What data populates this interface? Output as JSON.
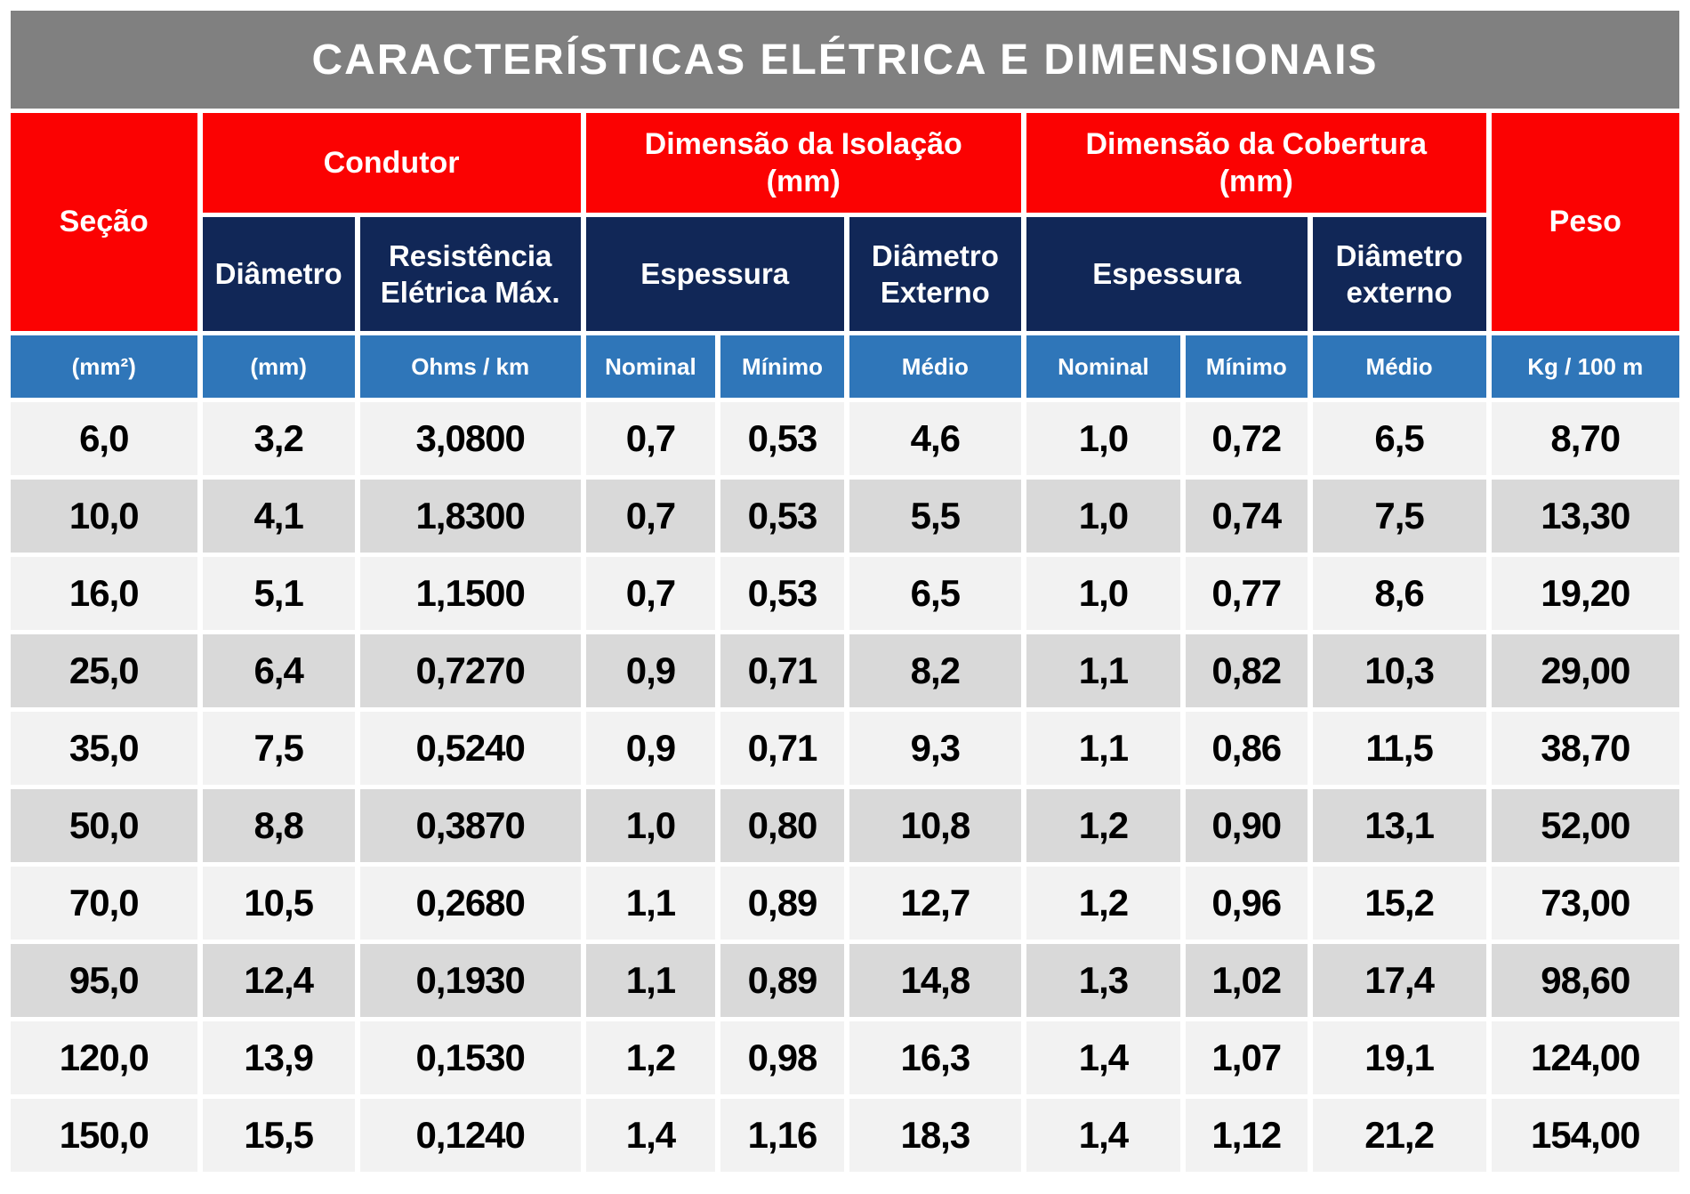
{
  "title": "CARACTERÍSTICAS ELÉTRICA E DIMENSIONAIS",
  "colors": {
    "red": "#fb0202",
    "navy": "#112757",
    "blue": "#2f76b9",
    "gray": "#808080",
    "light": "#f2f2f2",
    "alt": "#d9d9d9"
  },
  "header": {
    "secao": "Seção",
    "condutor": "Condutor",
    "isolacao_line1": "Dimensão da Isolação",
    "isolacao_line2": "(mm)",
    "cobertura_line1": "Dimensão da Cobertura",
    "cobertura_line2": "(mm)",
    "peso": "Peso",
    "diametro": "Diâmetro",
    "resistencia": "Resistência Elétrica Máx.",
    "espessura_isolacao": "Espessura",
    "diametro_externo_isolacao": "Diâmetro Externo",
    "espessura_cobertura": "Espessura",
    "diametro_externo_cobertura": "Diâmetro externo"
  },
  "units": [
    "(mm²)",
    "(mm)",
    "Ohms / km",
    "Nominal",
    "Mínimo",
    "Médio",
    "Nominal",
    "Mínimo",
    "Médio",
    "Kg / 100 m"
  ],
  "table": {
    "shaded_rows": [
      1,
      3,
      5,
      7
    ],
    "rows": [
      [
        "6,0",
        "3,2",
        "3,0800",
        "0,7",
        "0,53",
        "4,6",
        "1,0",
        "0,72",
        "6,5",
        "8,70"
      ],
      [
        "10,0",
        "4,1",
        "1,8300",
        "0,7",
        "0,53",
        "5,5",
        "1,0",
        "0,74",
        "7,5",
        "13,30"
      ],
      [
        "16,0",
        "5,1",
        "1,1500",
        "0,7",
        "0,53",
        "6,5",
        "1,0",
        "0,77",
        "8,6",
        "19,20"
      ],
      [
        "25,0",
        "6,4",
        "0,7270",
        "0,9",
        "0,71",
        "8,2",
        "1,1",
        "0,82",
        "10,3",
        "29,00"
      ],
      [
        "35,0",
        "7,5",
        "0,5240",
        "0,9",
        "0,71",
        "9,3",
        "1,1",
        "0,86",
        "11,5",
        "38,70"
      ],
      [
        "50,0",
        "8,8",
        "0,3870",
        "1,0",
        "0,80",
        "10,8",
        "1,2",
        "0,90",
        "13,1",
        "52,00"
      ],
      [
        "70,0",
        "10,5",
        "0,2680",
        "1,1",
        "0,89",
        "12,7",
        "1,2",
        "0,96",
        "15,2",
        "73,00"
      ],
      [
        "95,0",
        "12,4",
        "0,1930",
        "1,1",
        "0,89",
        "14,8",
        "1,3",
        "1,02",
        "17,4",
        "98,60"
      ],
      [
        "120,0",
        "13,9",
        "0,1530",
        "1,2",
        "0,98",
        "16,3",
        "1,4",
        "1,07",
        "19,1",
        "124,00"
      ],
      [
        "150,0",
        "15,5",
        "0,1240",
        "1,4",
        "1,16",
        "18,3",
        "1,4",
        "1,12",
        "21,2",
        "154,00"
      ]
    ]
  }
}
